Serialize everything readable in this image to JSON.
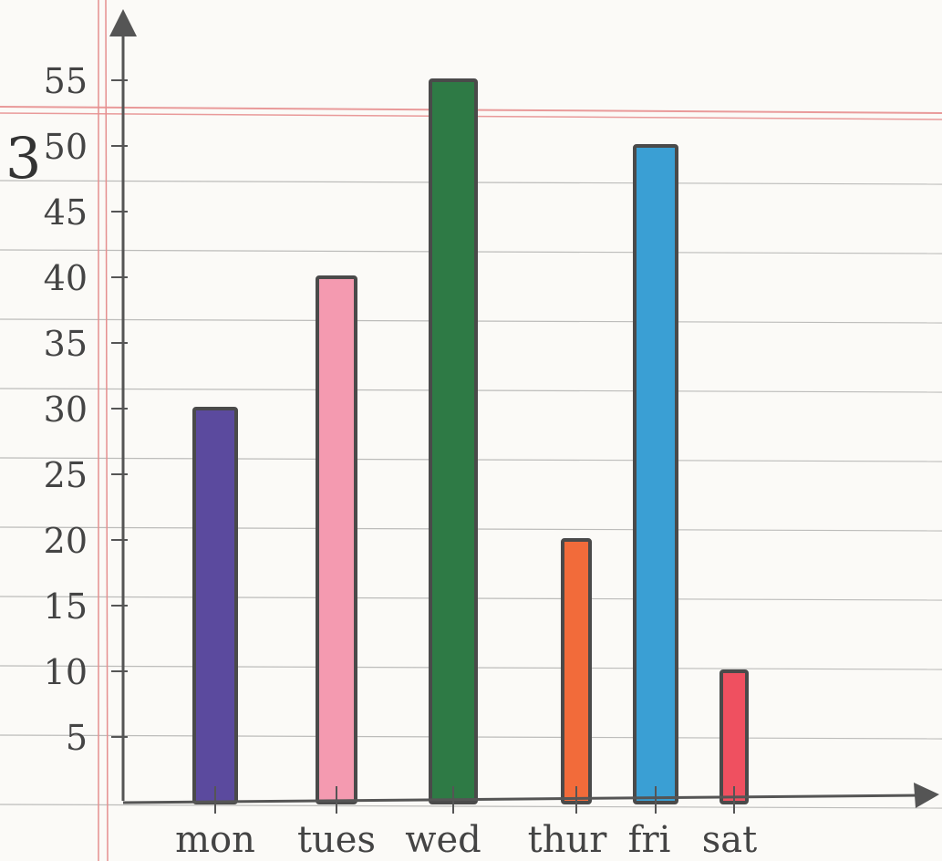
{
  "chart_data": {
    "type": "bar",
    "categories": [
      "mon",
      "tues",
      "wed",
      "thur",
      "fri",
      "sat"
    ],
    "values": [
      30,
      40,
      55,
      20,
      50,
      10
    ],
    "colors": [
      "#5b4a9e",
      "#f49ab0",
      "#2e7a45",
      "#f26b3a",
      "#3a9fd4",
      "#ef5060"
    ],
    "ytick_labels": [
      "5",
      "10",
      "15",
      "20",
      "25",
      "30",
      "35",
      "40",
      "45",
      "50",
      "55"
    ],
    "ylim": [
      0,
      58
    ],
    "grid": true,
    "margin_mark": "3"
  }
}
